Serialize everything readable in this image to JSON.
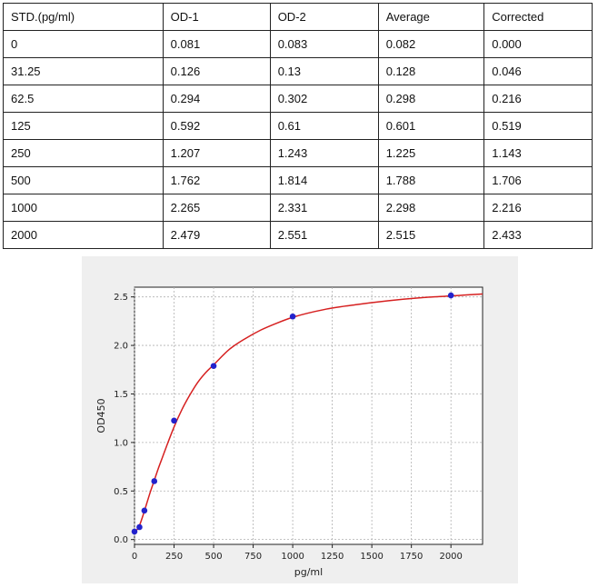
{
  "table": {
    "headers": [
      "STD.(pg/ml)",
      "OD-1",
      "OD-2",
      "Average",
      "Corrected"
    ],
    "rows": [
      [
        "0",
        "0.081",
        "0.083",
        "0.082",
        "0.000"
      ],
      [
        "31.25",
        "0.126",
        "0.13",
        "0.128",
        "0.046"
      ],
      [
        "62.5",
        "0.294",
        "0.302",
        "0.298",
        "0.216"
      ],
      [
        "125",
        "0.592",
        "0.61",
        "0.601",
        "0.519"
      ],
      [
        "250",
        "1.207",
        "1.243",
        "1.225",
        "1.143"
      ],
      [
        "500",
        "1.762",
        "1.814",
        "1.788",
        "1.706"
      ],
      [
        "1000",
        "2.265",
        "2.331",
        "2.298",
        "2.216"
      ],
      [
        "2000",
        "2.479",
        "2.551",
        "2.515",
        "2.433"
      ]
    ]
  },
  "chart_data": {
    "type": "scatter",
    "title": "",
    "xlabel": "pg/ml",
    "ylabel": "OD450",
    "xlim": [
      0,
      2200
    ],
    "ylim": [
      -0.05,
      2.6
    ],
    "xticks": [
      0,
      250,
      500,
      750,
      1000,
      1250,
      1500,
      1750,
      2000
    ],
    "yticks": [
      0.0,
      0.5,
      1.0,
      1.5,
      2.0,
      2.5
    ],
    "grid": true,
    "points": {
      "x": [
        0,
        31.25,
        62.5,
        125,
        250,
        500,
        1000,
        2000
      ],
      "y": [
        0.082,
        0.128,
        0.298,
        0.601,
        1.225,
        1.788,
        2.298,
        2.515
      ]
    },
    "fit_curve": {
      "x": [
        0,
        25,
        50,
        75,
        100,
        125,
        150,
        175,
        200,
        250,
        300,
        350,
        400,
        450,
        500,
        600,
        700,
        800,
        900,
        1000,
        1200,
        1400,
        1600,
        1800,
        2000,
        2200
      ],
      "y": [
        0.082,
        0.12,
        0.23,
        0.36,
        0.49,
        0.61,
        0.73,
        0.84,
        0.95,
        1.16,
        1.34,
        1.49,
        1.62,
        1.72,
        1.8,
        1.96,
        2.07,
        2.16,
        2.23,
        2.29,
        2.37,
        2.42,
        2.46,
        2.49,
        2.51,
        2.53
      ]
    },
    "colors": {
      "points": "#2222cc",
      "curve": "#d62020",
      "grid": "#b0b0b0",
      "background": "#efefef",
      "plot_area": "#ffffff"
    }
  }
}
